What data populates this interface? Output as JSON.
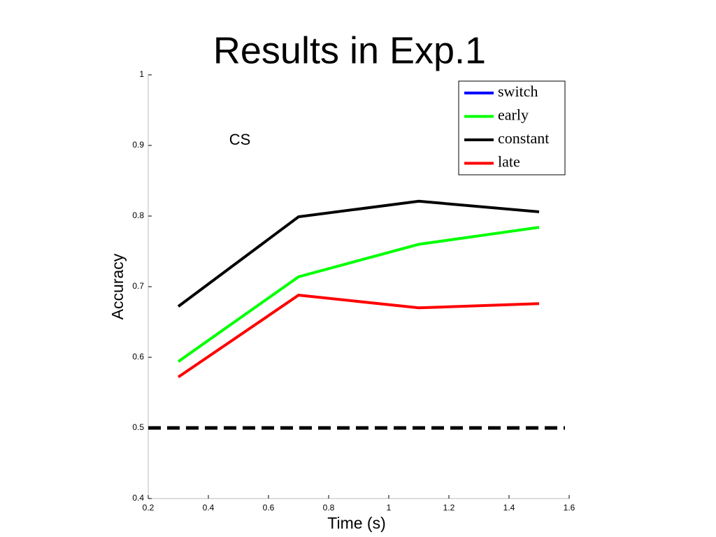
{
  "chart_data": {
    "type": "line",
    "title": "Results in Exp.1",
    "xlabel": "Time (s)",
    "ylabel": "Accuracy",
    "annotation": "CS",
    "x": [
      0.3,
      0.7,
      1.1,
      1.5
    ],
    "series": [
      {
        "name": "switch",
        "color": "#0000ff",
        "values": [
          null,
          null,
          null,
          null
        ]
      },
      {
        "name": "early",
        "color": "#00ff00",
        "values": [
          0.594,
          0.714,
          0.76,
          0.784
        ]
      },
      {
        "name": "constant",
        "color": "#000000",
        "values": [
          0.672,
          0.799,
          0.821,
          0.806
        ]
      },
      {
        "name": "late",
        "color": "#ff0000",
        "values": [
          0.572,
          0.688,
          0.67,
          0.676
        ]
      }
    ],
    "reference_line": {
      "y": 0.5,
      "color": "#000000",
      "dashed": true
    },
    "xlim": [
      0.2,
      1.6
    ],
    "xticks": [
      0.2,
      0.4,
      0.6,
      0.8,
      1,
      1.2,
      1.4,
      1.6
    ],
    "ylim": [
      0.4,
      1
    ],
    "yticks": [
      0.4,
      0.5,
      0.6,
      0.7,
      0.8,
      0.9,
      1
    ],
    "legend": "upper right",
    "grid": false
  }
}
